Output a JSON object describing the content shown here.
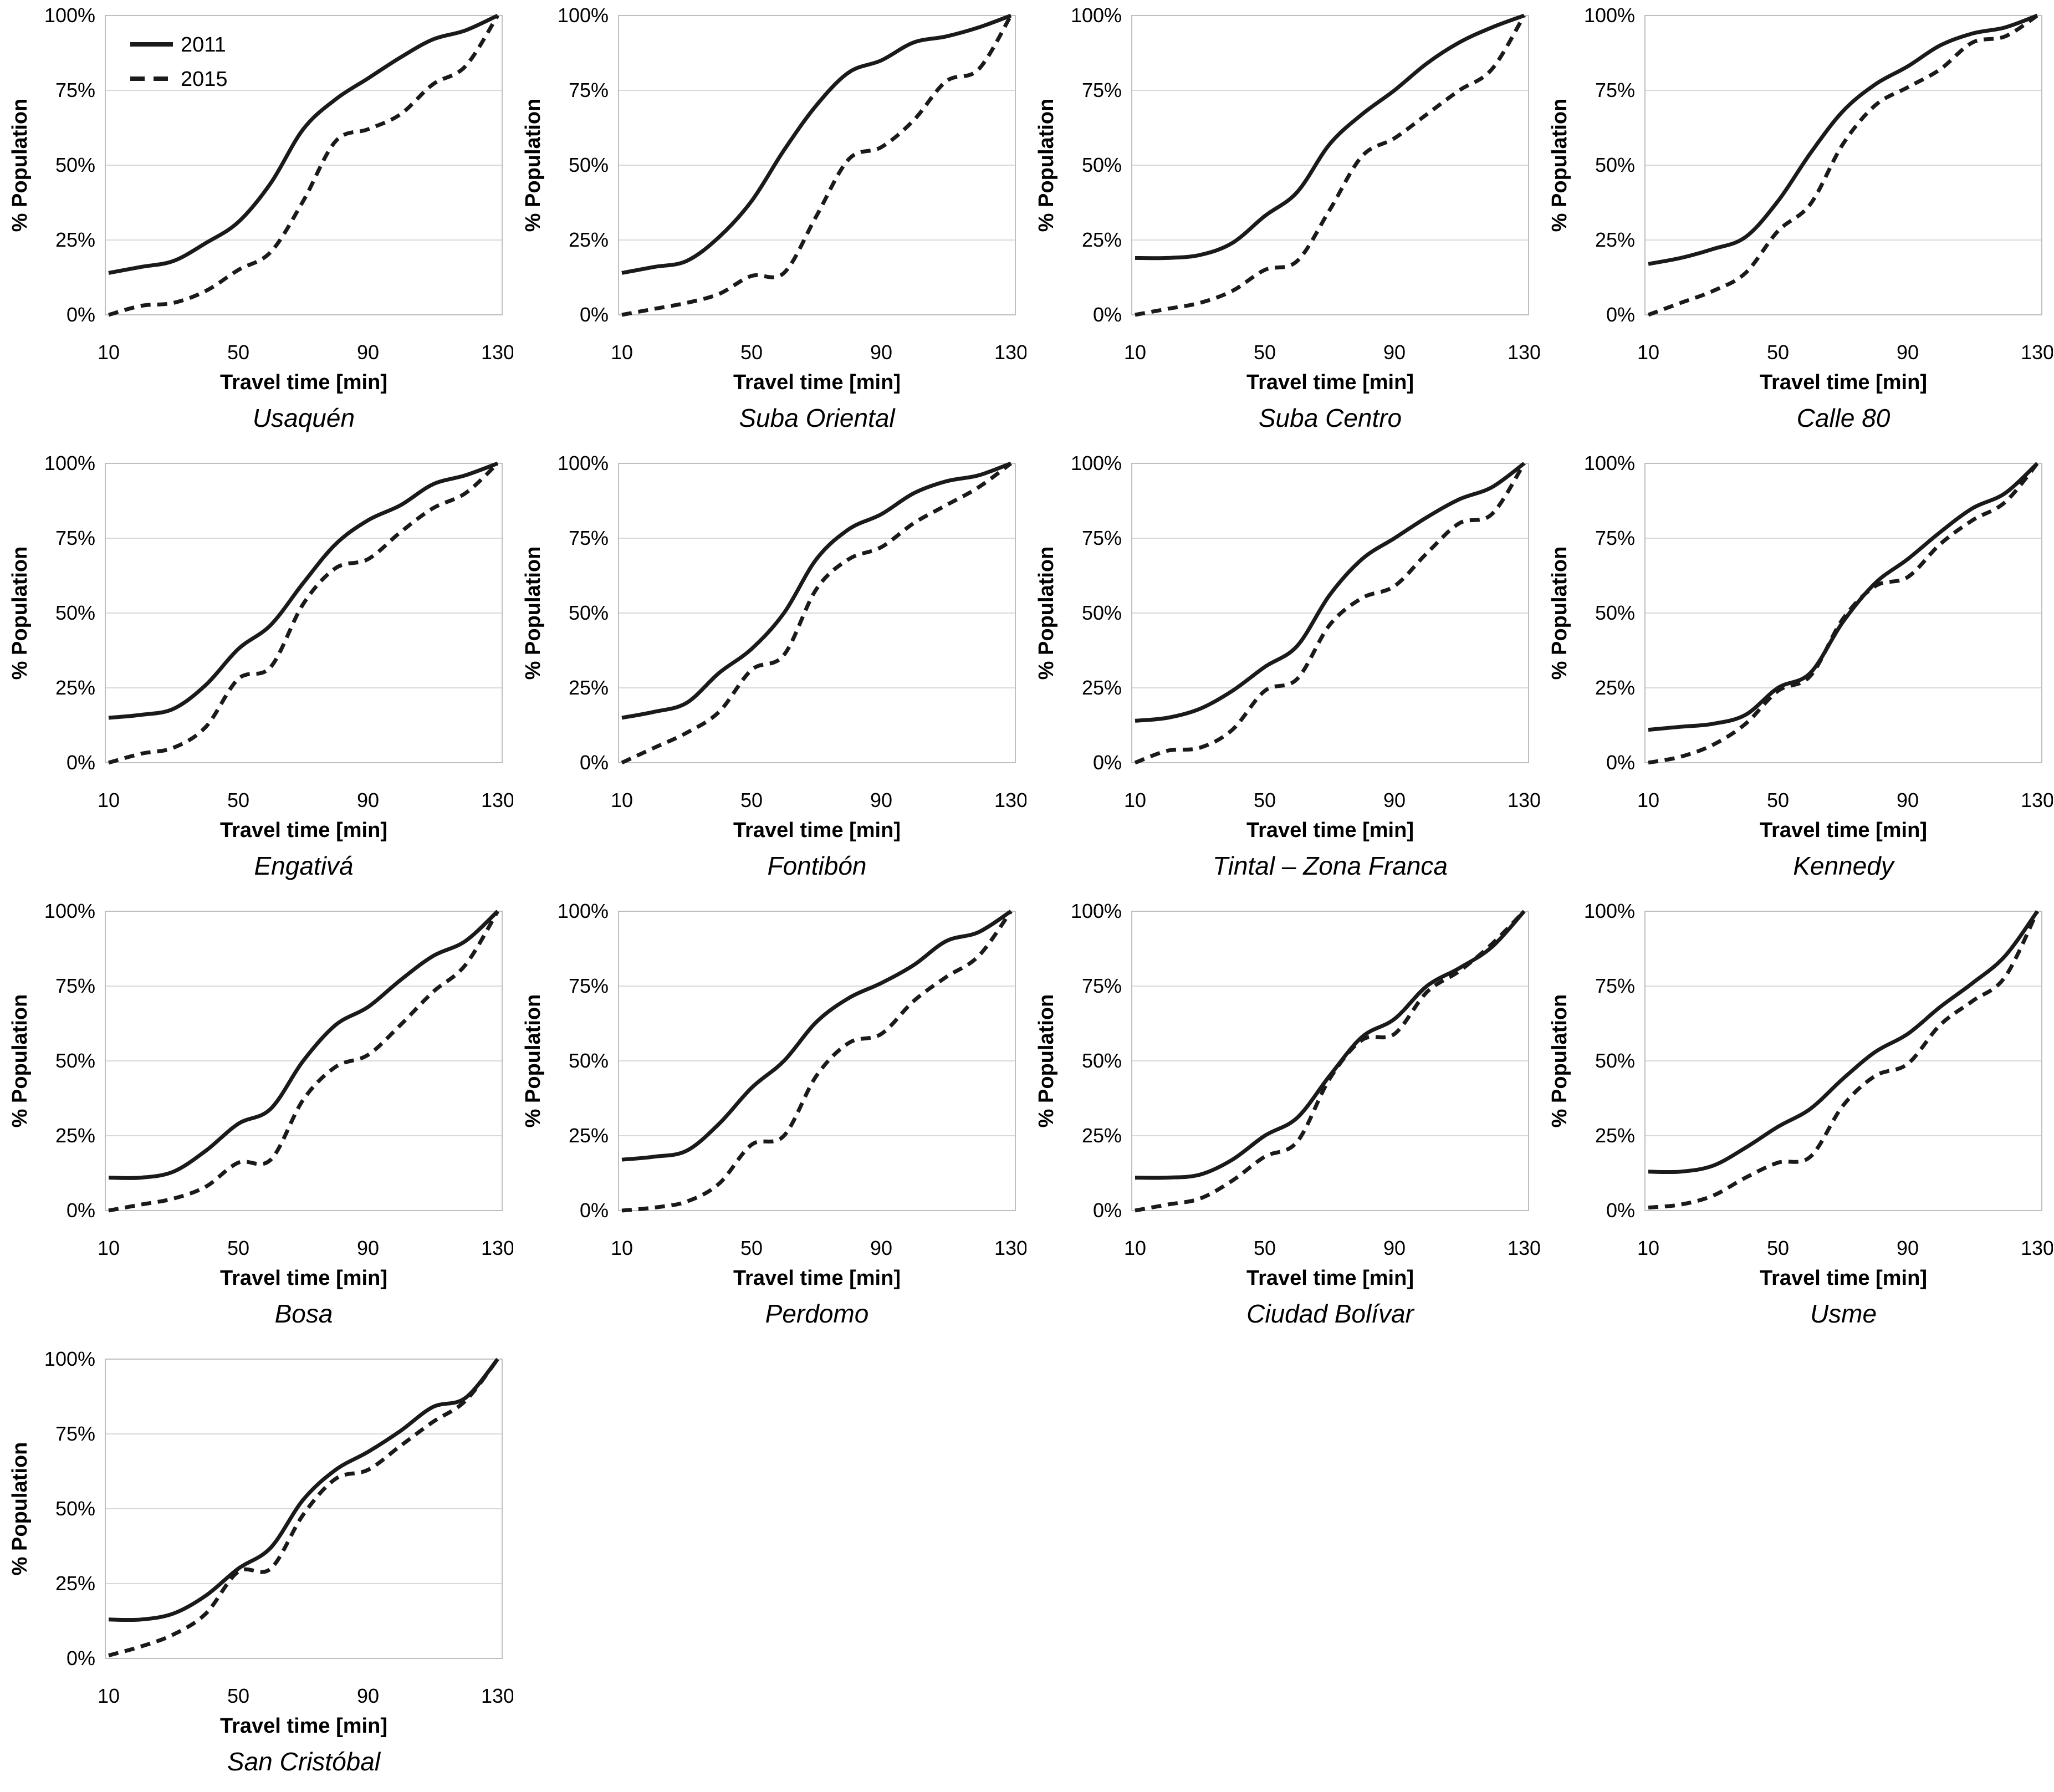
{
  "figure": {
    "description": "Cumulative percentage of population versus travel time for 13 Bogota corridors, comparing 2011 and 2015"
  },
  "legend": {
    "items": [
      {
        "label": "2011",
        "style": "solid"
      },
      {
        "label": "2015",
        "style": "dashed"
      }
    ]
  },
  "colors": {
    "line": "#1a1a1a",
    "grid": "#d9d9d9",
    "border": "#bfbfbf",
    "legend_text": "#595959",
    "axis_text": "#000000"
  },
  "axes": {
    "xlabel": "Travel time [min]",
    "ylabel": "% Population",
    "x_ticks": [
      10,
      50,
      90,
      130
    ],
    "y_ticks": [
      {
        "label": "0%",
        "value": 0
      },
      {
        "label": "25%",
        "value": 25
      },
      {
        "label": "50%",
        "value": 50
      },
      {
        "label": "75%",
        "value": 75
      },
      {
        "label": "100%",
        "value": 100
      }
    ],
    "xlim": [
      10,
      130
    ],
    "ylim": [
      0,
      100
    ],
    "grid": "horizontal"
  },
  "chart_data": [
    {
      "type": "line",
      "title": "Usaquén",
      "x": [
        10,
        20,
        30,
        40,
        50,
        60,
        70,
        80,
        90,
        100,
        110,
        120,
        130
      ],
      "series": [
        {
          "name": "2011",
          "values": [
            14,
            16,
            18,
            24,
            31,
            44,
            62,
            72,
            79,
            86,
            92,
            95,
            100
          ]
        },
        {
          "name": "2015",
          "values": [
            0,
            3,
            4,
            8,
            15,
            21,
            38,
            58,
            62,
            67,
            77,
            83,
            100
          ]
        }
      ]
    },
    {
      "type": "line",
      "title": "Suba Oriental",
      "x": [
        10,
        20,
        30,
        40,
        50,
        60,
        70,
        80,
        90,
        100,
        110,
        120,
        130
      ],
      "series": [
        {
          "name": "2011",
          "values": [
            14,
            16,
            18,
            26,
            38,
            55,
            70,
            81,
            85,
            91,
            93,
            96,
            100
          ]
        },
        {
          "name": "2015",
          "values": [
            0,
            2,
            4,
            7,
            13,
            14,
            33,
            52,
            56,
            65,
            78,
            82,
            100
          ]
        }
      ]
    },
    {
      "type": "line",
      "title": "Suba Centro",
      "x": [
        10,
        20,
        30,
        40,
        50,
        60,
        70,
        80,
        90,
        100,
        110,
        120,
        130
      ],
      "series": [
        {
          "name": "2011",
          "values": [
            19,
            19,
            20,
            24,
            33,
            41,
            57,
            67,
            75,
            84,
            91,
            96,
            100
          ]
        },
        {
          "name": "2015",
          "values": [
            0,
            2,
            4,
            8,
            15,
            18,
            35,
            53,
            59,
            67,
            75,
            82,
            100
          ]
        }
      ]
    },
    {
      "type": "line",
      "title": "Calle 80",
      "x": [
        10,
        20,
        30,
        40,
        50,
        60,
        70,
        80,
        90,
        100,
        110,
        120,
        130
      ],
      "series": [
        {
          "name": "2011",
          "values": [
            17,
            19,
            22,
            26,
            38,
            54,
            68,
            77,
            83,
            90,
            94,
            96,
            100
          ]
        },
        {
          "name": "2015",
          "values": [
            0,
            4,
            8,
            14,
            28,
            37,
            57,
            70,
            76,
            82,
            91,
            93,
            100
          ]
        }
      ]
    },
    {
      "type": "line",
      "title": "Engativá",
      "x": [
        10,
        20,
        30,
        40,
        50,
        60,
        70,
        80,
        90,
        100,
        110,
        120,
        130
      ],
      "series": [
        {
          "name": "2011",
          "values": [
            15,
            16,
            18,
            26,
            38,
            46,
            60,
            73,
            81,
            86,
            93,
            96,
            100
          ]
        },
        {
          "name": "2015",
          "values": [
            0,
            3,
            5,
            12,
            28,
            32,
            53,
            65,
            68,
            77,
            85,
            90,
            100
          ]
        }
      ]
    },
    {
      "type": "line",
      "title": "Fontibón",
      "x": [
        10,
        20,
        30,
        40,
        50,
        60,
        70,
        80,
        90,
        100,
        110,
        120,
        130
      ],
      "series": [
        {
          "name": "2011",
          "values": [
            15,
            17,
            20,
            30,
            38,
            50,
            68,
            78,
            83,
            90,
            94,
            96,
            100
          ]
        },
        {
          "name": "2015",
          "values": [
            0,
            5,
            10,
            17,
            31,
            36,
            58,
            68,
            72,
            80,
            86,
            92,
            100
          ]
        }
      ]
    },
    {
      "type": "line",
      "title": "Tintal – Zona Franca",
      "x": [
        10,
        20,
        30,
        40,
        50,
        60,
        70,
        80,
        90,
        100,
        110,
        120,
        130
      ],
      "series": [
        {
          "name": "2011",
          "values": [
            14,
            15,
            18,
            24,
            32,
            39,
            56,
            68,
            75,
            82,
            88,
            92,
            100
          ]
        },
        {
          "name": "2015",
          "values": [
            0,
            4,
            5,
            11,
            24,
            28,
            46,
            55,
            59,
            70,
            80,
            83,
            100
          ]
        }
      ]
    },
    {
      "type": "line",
      "title": "Kennedy",
      "x": [
        10,
        20,
        30,
        40,
        50,
        60,
        70,
        80,
        90,
        100,
        110,
        120,
        130
      ],
      "series": [
        {
          "name": "2011",
          "values": [
            11,
            12,
            13,
            16,
            25,
            30,
            47,
            60,
            68,
            77,
            85,
            90,
            100
          ]
        },
        {
          "name": "2015",
          "values": [
            0,
            2,
            6,
            13,
            24,
            29,
            48,
            59,
            62,
            73,
            81,
            87,
            100
          ]
        }
      ]
    },
    {
      "type": "line",
      "title": "Bosa",
      "x": [
        10,
        20,
        30,
        40,
        50,
        60,
        70,
        80,
        90,
        100,
        110,
        120,
        130
      ],
      "series": [
        {
          "name": "2011",
          "values": [
            11,
            11,
            13,
            20,
            29,
            34,
            50,
            62,
            68,
            77,
            85,
            90,
            100
          ]
        },
        {
          "name": "2015",
          "values": [
            0,
            2,
            4,
            8,
            16,
            17,
            37,
            48,
            52,
            62,
            73,
            82,
            100
          ]
        }
      ]
    },
    {
      "type": "line",
      "title": "Perdomo",
      "x": [
        10,
        20,
        30,
        40,
        50,
        60,
        70,
        80,
        90,
        100,
        110,
        120,
        130
      ],
      "series": [
        {
          "name": "2011",
          "values": [
            17,
            18,
            20,
            29,
            41,
            50,
            63,
            71,
            76,
            82,
            90,
            93,
            100
          ]
        },
        {
          "name": "2015",
          "values": [
            0,
            1,
            3,
            9,
            22,
            25,
            45,
            56,
            59,
            70,
            78,
            85,
            100
          ]
        }
      ]
    },
    {
      "type": "line",
      "title": "Ciudad Bolívar",
      "x": [
        10,
        20,
        30,
        40,
        50,
        60,
        70,
        80,
        90,
        100,
        110,
        120,
        130
      ],
      "series": [
        {
          "name": "2011",
          "values": [
            11,
            11,
            12,
            17,
            25,
            31,
            45,
            58,
            64,
            75,
            81,
            88,
            100
          ]
        },
        {
          "name": "2015",
          "values": [
            0,
            2,
            4,
            10,
            18,
            23,
            44,
            57,
            59,
            73,
            80,
            89,
            100
          ]
        }
      ]
    },
    {
      "type": "line",
      "title": "Usme",
      "x": [
        10,
        20,
        30,
        40,
        50,
        60,
        70,
        80,
        90,
        100,
        110,
        120,
        130
      ],
      "series": [
        {
          "name": "2011",
          "values": [
            13,
            13,
            15,
            21,
            28,
            34,
            44,
            53,
            59,
            68,
            76,
            85,
            100
          ]
        },
        {
          "name": "2015",
          "values": [
            1,
            2,
            5,
            11,
            16,
            18,
            35,
            45,
            49,
            62,
            70,
            78,
            100
          ]
        }
      ]
    },
    {
      "type": "line",
      "title": "San Cristóbal",
      "x": [
        10,
        20,
        30,
        40,
        50,
        60,
        70,
        80,
        90,
        100,
        110,
        120,
        130
      ],
      "series": [
        {
          "name": "2011",
          "values": [
            13,
            13,
            15,
            21,
            30,
            37,
            53,
            63,
            69,
            76,
            84,
            87,
            100
          ]
        },
        {
          "name": "2015",
          "values": [
            1,
            4,
            8,
            15,
            29,
            30,
            48,
            60,
            63,
            71,
            79,
            86,
            100
          ]
        }
      ]
    }
  ]
}
